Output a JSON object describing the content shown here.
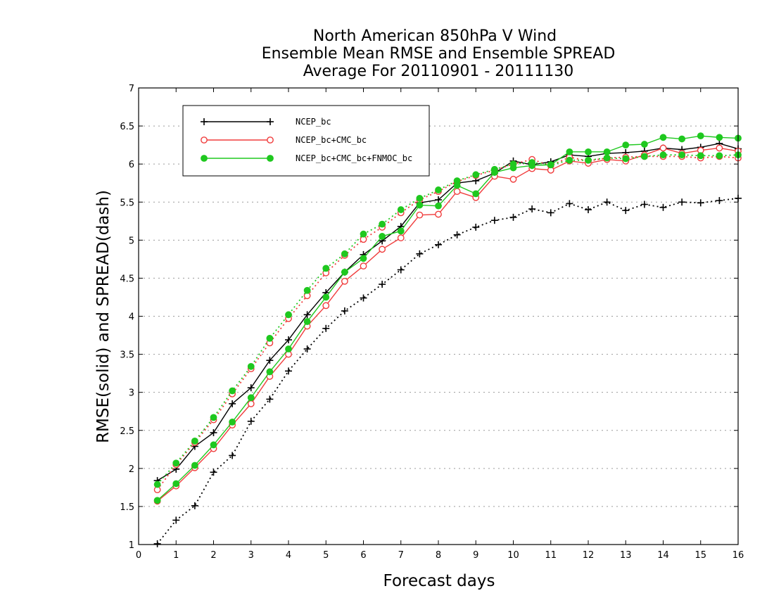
{
  "chart_data": {
    "type": "line",
    "title": [
      "North American 850hPa V Wind",
      "Ensemble Mean RMSE and Ensemble SPREAD",
      "Average For 20110901 - 20111130"
    ],
    "xlabel": "Forecast days",
    "ylabel": "RMSE(solid) and SPREAD(dash)",
    "xlim": [
      0,
      16
    ],
    "ylim": [
      1,
      7
    ],
    "xticks": [
      0,
      1,
      2,
      3,
      4,
      5,
      6,
      7,
      8,
      9,
      10,
      11,
      12,
      13,
      14,
      15,
      16
    ],
    "xtick_labels": [
      "0",
      "1",
      "2",
      "3",
      "4",
      "5",
      "6",
      "7",
      "8",
      "9",
      "10",
      "11",
      "12",
      "13",
      "14",
      "15",
      "16"
    ],
    "yticks": [
      1,
      1.5,
      2,
      2.5,
      3,
      3.5,
      4,
      4.5,
      5,
      5.5,
      6,
      6.5,
      7
    ],
    "ytick_labels": [
      "1",
      "1.5",
      "2",
      "2.5",
      "3",
      "3.5",
      "4",
      "4.5",
      "5",
      "5.5",
      "6",
      "6.5",
      "7"
    ],
    "grid": "horizontal dotted",
    "legend_position": "top-left",
    "x": [
      0.5,
      1,
      1.5,
      2,
      2.5,
      3,
      3.5,
      4,
      4.5,
      5,
      5.5,
      6,
      6.5,
      7,
      7.5,
      8,
      8.5,
      9,
      9.5,
      10,
      10.5,
      11,
      11.5,
      12,
      12.5,
      13,
      13.5,
      14,
      14.5,
      15,
      15.5,
      16
    ],
    "series": [
      {
        "name": "NCEP_bc",
        "color": "#000000",
        "marker": "plus",
        "rmse": [
          1.84,
          1.99,
          2.29,
          2.47,
          2.85,
          3.06,
          3.42,
          3.69,
          4.02,
          4.31,
          4.58,
          4.81,
          4.99,
          5.18,
          5.49,
          5.53,
          5.75,
          5.78,
          5.88,
          6.04,
          5.99,
          6.03,
          6.12,
          6.1,
          6.14,
          6.15,
          6.17,
          6.21,
          6.19,
          6.22,
          6.27,
          6.2
        ],
        "spread": [
          1.01,
          1.32,
          1.51,
          1.95,
          2.17,
          2.62,
          2.91,
          3.28,
          3.57,
          3.84,
          4.07,
          4.24,
          4.42,
          4.61,
          4.82,
          4.94,
          5.07,
          5.17,
          5.26,
          5.3,
          5.41,
          5.36,
          5.48,
          5.4,
          5.5,
          5.39,
          5.47,
          5.43,
          5.5,
          5.49,
          5.52,
          5.55
        ]
      },
      {
        "name": "NCEP_bc+CMC_bc",
        "color": "#f03c3c",
        "marker": "open-circle",
        "rmse": [
          1.57,
          1.77,
          2.01,
          2.26,
          2.57,
          2.85,
          3.21,
          3.5,
          3.87,
          4.14,
          4.46,
          4.66,
          4.88,
          5.03,
          5.33,
          5.34,
          5.64,
          5.56,
          5.84,
          5.8,
          5.94,
          5.92,
          6.04,
          6.01,
          6.06,
          6.04,
          6.12,
          6.21,
          6.14,
          6.18,
          6.21,
          6.17
        ],
        "spread": [
          1.72,
          2.05,
          2.34,
          2.64,
          2.98,
          3.31,
          3.65,
          3.97,
          4.27,
          4.57,
          4.8,
          5.01,
          5.17,
          5.36,
          5.53,
          5.64,
          5.77,
          5.85,
          5.92,
          6.0,
          6.06,
          5.98,
          6.09,
          6.04,
          6.08,
          6.09,
          6.1,
          6.1,
          6.1,
          6.08,
          6.1,
          6.08
        ]
      },
      {
        "name": "NCEP_bc+CMC_bc+FNMOC_bc",
        "color": "#1fc81f",
        "marker": "filled-circle",
        "rmse": [
          1.58,
          1.8,
          2.04,
          2.31,
          2.61,
          2.93,
          3.27,
          3.57,
          3.93,
          4.25,
          4.58,
          4.76,
          5.05,
          5.12,
          5.46,
          5.45,
          5.72,
          5.61,
          5.89,
          5.95,
          5.98,
          5.99,
          6.16,
          6.16,
          6.16,
          6.25,
          6.26,
          6.35,
          6.33,
          6.37,
          6.35,
          6.34
        ],
        "spread": [
          1.79,
          2.07,
          2.36,
          2.67,
          3.02,
          3.34,
          3.71,
          4.02,
          4.34,
          4.63,
          4.82,
          5.08,
          5.21,
          5.4,
          5.55,
          5.66,
          5.78,
          5.86,
          5.93,
          6.0,
          6.02,
          5.99,
          6.05,
          6.05,
          6.08,
          6.07,
          6.1,
          6.12,
          6.12,
          6.11,
          6.11,
          6.12
        ]
      }
    ]
  }
}
